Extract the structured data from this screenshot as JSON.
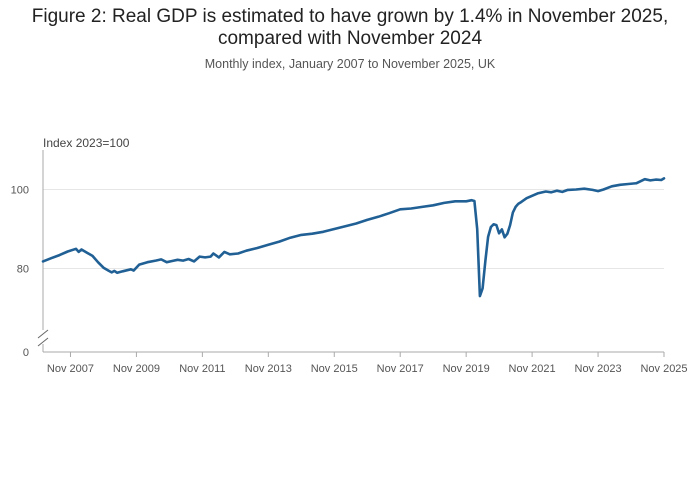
{
  "header": {
    "title_line1": "Figure 2: Real GDP is estimated to have grown by 1.4% in November 2025,",
    "title_line2": "compared with November 2024",
    "subtitle": "Monthly index, January 2007 to November 2025, UK"
  },
  "colors": {
    "line": "#206095",
    "grid": "#e6e6e6",
    "axis": "#aaaaaa"
  },
  "chart_data": {
    "type": "line",
    "title": "Figure 2: Real GDP is estimated to have grown by 1.4% in November 2025, compared with November 2024",
    "subtitle": "Monthly index, January 2007 to November 2025, UK",
    "ylabel": "Index 2023=100",
    "xlabel": "",
    "axis_break": true,
    "ylim": [
      0,
      110
    ],
    "yticks": [
      0,
      80,
      100
    ],
    "ytick_labels": [
      "0",
      "80",
      "100"
    ],
    "xticks": [
      "2007-11",
      "2009-11",
      "2011-11",
      "2013-11",
      "2015-11",
      "2017-11",
      "2019-11",
      "2021-11",
      "2023-11",
      "2025-11"
    ],
    "xtick_labels": [
      "Nov 2007",
      "Nov 2009",
      "Nov 2011",
      "Nov 2013",
      "Nov 2015",
      "Nov 2017",
      "Nov 2019",
      "Nov 2021",
      "Nov 2023",
      "Nov 2025"
    ],
    "grid": true,
    "series": [
      {
        "name": "",
        "points": [
          [
            "2007-01",
            81.8
          ],
          [
            "2007-04",
            82.6
          ],
          [
            "2007-07",
            83.4
          ],
          [
            "2007-10",
            84.3
          ],
          [
            "2008-01",
            85.0
          ],
          [
            "2008-02",
            84.2
          ],
          [
            "2008-03",
            84.8
          ],
          [
            "2008-05",
            84.0
          ],
          [
            "2008-07",
            83.2
          ],
          [
            "2008-09",
            81.6
          ],
          [
            "2008-11",
            80.2
          ],
          [
            "2009-01",
            79.4
          ],
          [
            "2009-02",
            79.0
          ],
          [
            "2009-03",
            79.4
          ],
          [
            "2009-04",
            78.9
          ],
          [
            "2009-06",
            79.3
          ],
          [
            "2009-09",
            79.8
          ],
          [
            "2009-10",
            79.5
          ],
          [
            "2009-12",
            81.0
          ],
          [
            "2010-03",
            81.6
          ],
          [
            "2010-06",
            82.0
          ],
          [
            "2010-08",
            82.3
          ],
          [
            "2010-10",
            81.6
          ],
          [
            "2010-12",
            81.9
          ],
          [
            "2011-02",
            82.2
          ],
          [
            "2011-04",
            82.0
          ],
          [
            "2011-06",
            82.4
          ],
          [
            "2011-08",
            81.8
          ],
          [
            "2011-10",
            83.0
          ],
          [
            "2011-12",
            82.8
          ],
          [
            "2012-02",
            83.0
          ],
          [
            "2012-03",
            83.8
          ],
          [
            "2012-05",
            82.8
          ],
          [
            "2012-07",
            84.2
          ],
          [
            "2012-09",
            83.6
          ],
          [
            "2012-12",
            83.8
          ],
          [
            "2013-03",
            84.5
          ],
          [
            "2013-07",
            85.2
          ],
          [
            "2013-11",
            86.0
          ],
          [
            "2014-03",
            86.8
          ],
          [
            "2014-07",
            87.8
          ],
          [
            "2014-11",
            88.5
          ],
          [
            "2015-03",
            88.8
          ],
          [
            "2015-07",
            89.3
          ],
          [
            "2015-11",
            90.0
          ],
          [
            "2016-03",
            90.7
          ],
          [
            "2016-07",
            91.4
          ],
          [
            "2016-11",
            92.3
          ],
          [
            "2017-03",
            93.1
          ],
          [
            "2017-07",
            94.0
          ],
          [
            "2017-11",
            95.0
          ],
          [
            "2018-03",
            95.2
          ],
          [
            "2018-07",
            95.6
          ],
          [
            "2018-11",
            96.0
          ],
          [
            "2019-03",
            96.6
          ],
          [
            "2019-07",
            97.0
          ],
          [
            "2019-11",
            97.0
          ],
          [
            "2020-01",
            97.3
          ],
          [
            "2020-02",
            97.1
          ],
          [
            "2020-03",
            90.0
          ],
          [
            "2020-04",
            73.0
          ],
          [
            "2020-05",
            75.0
          ],
          [
            "2020-06",
            82.0
          ],
          [
            "2020-07",
            88.0
          ],
          [
            "2020-08",
            90.5
          ],
          [
            "2020-09",
            91.2
          ],
          [
            "2020-10",
            91.0
          ],
          [
            "2020-11",
            88.9
          ],
          [
            "2020-12",
            89.9
          ],
          [
            "2021-01",
            87.9
          ],
          [
            "2021-02",
            88.8
          ],
          [
            "2021-03",
            91.0
          ],
          [
            "2021-04",
            94.2
          ],
          [
            "2021-05",
            95.6
          ],
          [
            "2021-06",
            96.4
          ],
          [
            "2021-07",
            96.8
          ],
          [
            "2021-09",
            97.8
          ],
          [
            "2021-11",
            98.4
          ],
          [
            "2022-01",
            99.0
          ],
          [
            "2022-04",
            99.5
          ],
          [
            "2022-06",
            99.3
          ],
          [
            "2022-08",
            99.7
          ],
          [
            "2022-10",
            99.4
          ],
          [
            "2022-12",
            99.9
          ],
          [
            "2023-03",
            100.0
          ],
          [
            "2023-06",
            100.2
          ],
          [
            "2023-09",
            99.9
          ],
          [
            "2023-11",
            99.6
          ],
          [
            "2024-01",
            100.0
          ],
          [
            "2024-04",
            100.8
          ],
          [
            "2024-07",
            101.2
          ],
          [
            "2024-10",
            101.4
          ],
          [
            "2025-01",
            101.6
          ],
          [
            "2025-04",
            102.6
          ],
          [
            "2025-06",
            102.3
          ],
          [
            "2025-08",
            102.5
          ],
          [
            "2025-10",
            102.4
          ],
          [
            "2025-11",
            102.8
          ]
        ]
      }
    ]
  }
}
